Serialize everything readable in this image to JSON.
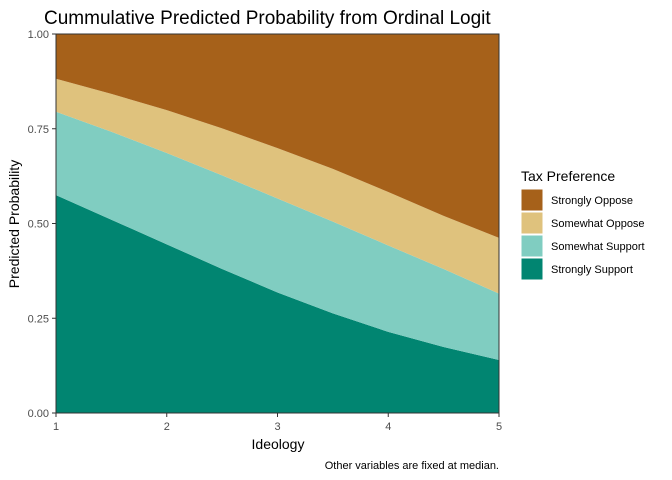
{
  "chart_data": {
    "type": "area",
    "stacked": true,
    "title": "Cummulative Predicted Probability from Ordinal Logit",
    "xlabel": "Ideology",
    "ylabel": "Predicted Probability",
    "caption": "Other variables are fixed at median.",
    "xlim": [
      1,
      5
    ],
    "ylim": [
      0,
      1
    ],
    "x_ticks": [
      1,
      2,
      3,
      4,
      5
    ],
    "x_tick_labels": [
      "1",
      "2",
      "3",
      "4",
      "5"
    ],
    "y_ticks": [
      0,
      0.25,
      0.5,
      0.75,
      1
    ],
    "y_tick_labels": [
      "0.00",
      "0.25",
      "0.50",
      "0.75",
      "1.00"
    ],
    "grid": false,
    "legend": {
      "title": "Tax Preference",
      "position": "right",
      "entries": [
        "Strongly Oppose",
        "Somewhat Oppose",
        "Somewhat Support",
        "Strongly Support"
      ]
    },
    "x": [
      1,
      1.5,
      2,
      2.5,
      3,
      3.5,
      4,
      4.5,
      5
    ],
    "series": [
      {
        "name": "Strongly Support",
        "color": "#018571",
        "values": [
          0.575,
          0.51,
          0.445,
          0.38,
          0.318,
          0.263,
          0.214,
          0.174,
          0.14
        ]
      },
      {
        "name": "Somewhat Support",
        "color": "#80cdc1",
        "values": [
          0.22,
          0.232,
          0.241,
          0.247,
          0.248,
          0.242,
          0.228,
          0.206,
          0.175
        ]
      },
      {
        "name": "Somewhat Oppose",
        "color": "#dfc27d",
        "values": [
          0.087,
          0.1,
          0.113,
          0.124,
          0.133,
          0.139,
          0.141,
          0.14,
          0.147
        ]
      },
      {
        "name": "Strongly Oppose",
        "color": "#a6611a",
        "values": [
          0.118,
          0.158,
          0.201,
          0.249,
          0.301,
          0.356,
          0.417,
          0.48,
          0.538
        ]
      }
    ]
  }
}
